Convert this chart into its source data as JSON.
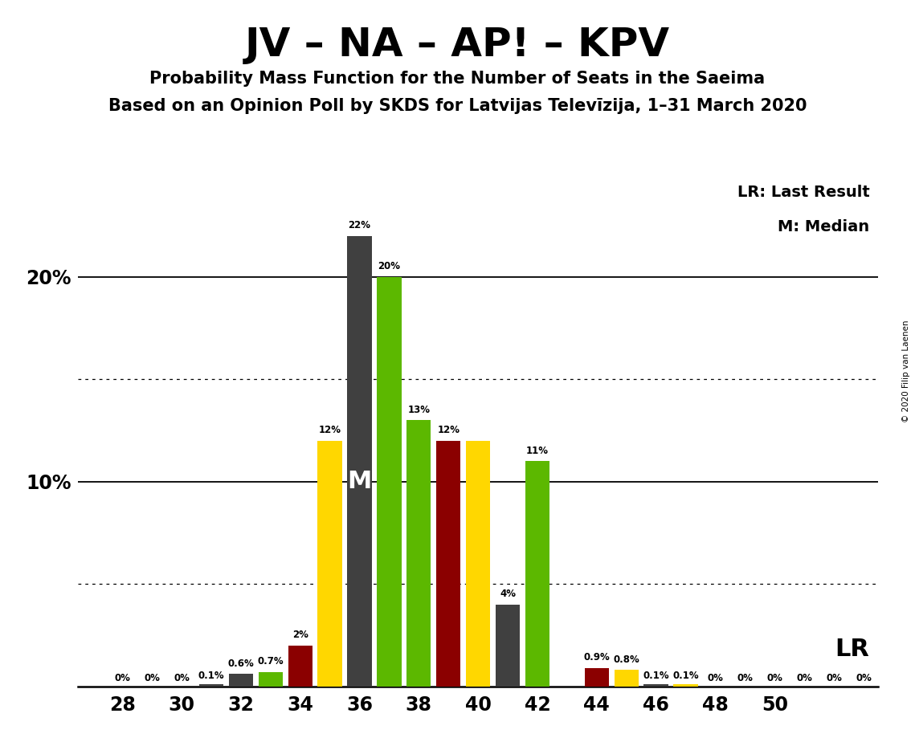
{
  "title": "JV – NA – AP! – KPV",
  "subtitle1": "Probability Mass Function for the Number of Seats in the Saeima",
  "subtitle2": "Based on an Opinion Poll by SKDS for Latvijas Televīzija, 1–31 March 2020",
  "copyright": "© 2020 Filip van Laenen",
  "legend_lr": "LR: Last Result",
  "legend_m": "M: Median",
  "background_color": "#ffffff",
  "bars": [
    {
      "x": 28,
      "color": "#FFD700",
      "value": 0.0,
      "label": "0%"
    },
    {
      "x": 29,
      "color": "#FFD700",
      "value": 0.0,
      "label": "0%"
    },
    {
      "x": 30,
      "color": "#FFD700",
      "value": 0.0,
      "label": "0%"
    },
    {
      "x": 31,
      "color": "#404040",
      "value": 0.1,
      "label": "0.1%"
    },
    {
      "x": 32,
      "color": "#404040",
      "value": 0.6,
      "label": "0.6%"
    },
    {
      "x": 33,
      "color": "#5cb800",
      "value": 0.7,
      "label": "0.7%"
    },
    {
      "x": 34,
      "color": "#8B0000",
      "value": 2.0,
      "label": "2%"
    },
    {
      "x": 35,
      "color": "#FFD700",
      "value": 12.0,
      "label": "12%"
    },
    {
      "x": 36,
      "color": "#404040",
      "value": 22.0,
      "label": "22%"
    },
    {
      "x": 37,
      "color": "#5cb800",
      "value": 20.0,
      "label": "20%"
    },
    {
      "x": 38,
      "color": "#5cb800",
      "value": 13.0,
      "label": "13%"
    },
    {
      "x": 39,
      "color": "#8B0000",
      "value": 12.0,
      "label": "12%"
    },
    {
      "x": 40,
      "color": "#FFD700",
      "value": 12.0,
      "label": ""
    },
    {
      "x": 41,
      "color": "#404040",
      "value": 4.0,
      "label": "4%"
    },
    {
      "x": 42,
      "color": "#5cb800",
      "value": 11.0,
      "label": "11%"
    },
    {
      "x": 43,
      "color": "#404040",
      "value": 0.0,
      "label": ""
    },
    {
      "x": 44,
      "color": "#8B0000",
      "value": 0.9,
      "label": "0.9%"
    },
    {
      "x": 45,
      "color": "#FFD700",
      "value": 0.8,
      "label": "0.8%"
    },
    {
      "x": 46,
      "color": "#404040",
      "value": 0.1,
      "label": "0.1%"
    },
    {
      "x": 47,
      "color": "#FFD700",
      "value": 0.1,
      "label": "0.1%"
    },
    {
      "x": 48,
      "color": "#404040",
      "value": 0.0,
      "label": "0%"
    },
    {
      "x": 49,
      "color": "#404040",
      "value": 0.0,
      "label": "0%"
    },
    {
      "x": 50,
      "color": "#404040",
      "value": 0.0,
      "label": "0%"
    },
    {
      "x": 51,
      "color": "#404040",
      "value": 0.0,
      "label": "0%"
    },
    {
      "x": 52,
      "color": "#404040",
      "value": 0.0,
      "label": "0%"
    },
    {
      "x": 53,
      "color": "#404040",
      "value": 0.0,
      "label": "0%"
    }
  ],
  "xtick_positions": [
    28,
    30,
    32,
    34,
    36,
    38,
    40,
    42,
    44,
    46,
    48,
    50
  ],
  "xtick_labels": [
    "28",
    "30",
    "32",
    "34",
    "36",
    "38",
    "40",
    "42",
    "44",
    "46",
    "48",
    "50"
  ],
  "ytick_solid": [
    10,
    20
  ],
  "ytick_dotted": [
    5,
    15
  ],
  "ytick_labels": [
    [
      10,
      "10%"
    ],
    [
      20,
      "20%"
    ]
  ],
  "ylim": [
    0,
    25
  ],
  "xlim_min": 26.5,
  "xlim_max": 53.5,
  "median_x": 36,
  "median_label": "M",
  "lr_x": 44,
  "lr_label": "LR"
}
